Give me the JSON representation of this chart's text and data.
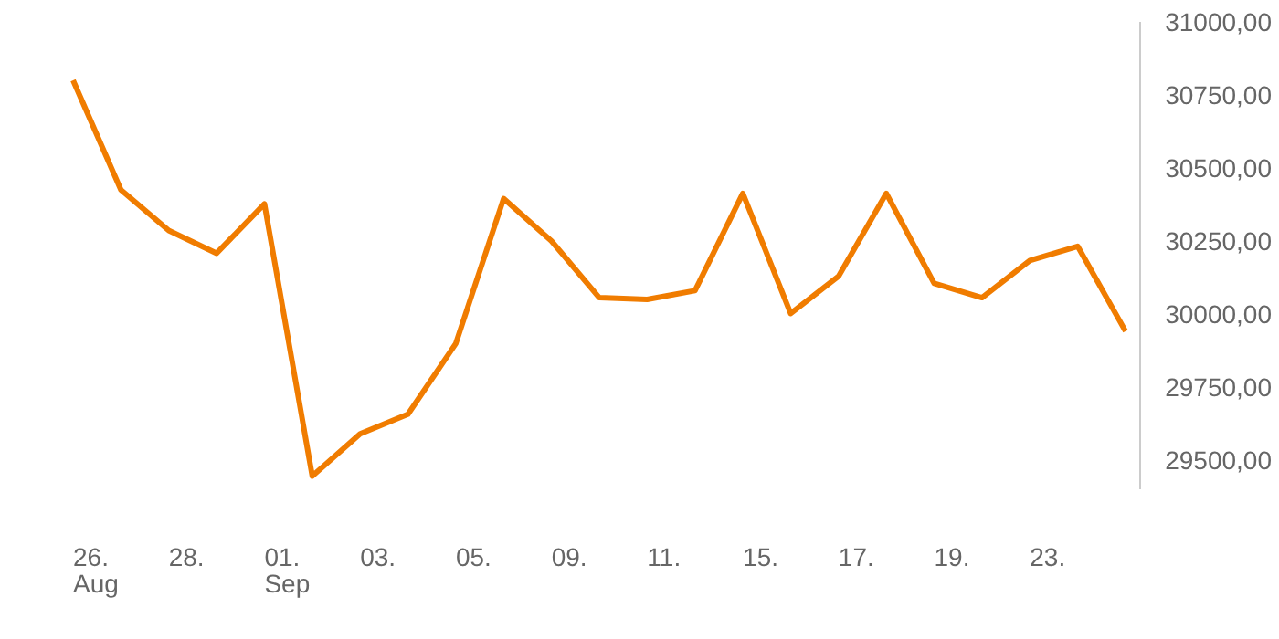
{
  "chart_data": {
    "type": "line",
    "categories": [
      "26.\nAug",
      null,
      "28.",
      null,
      "01.\nSep",
      null,
      "03.",
      null,
      "05.",
      null,
      "09.",
      null,
      "11.",
      null,
      "15.",
      null,
      "17.",
      null,
      "19.",
      null,
      "23.",
      null,
      null
    ],
    "series": [
      {
        "color": "#f07c00",
        "values": [
          30800,
          30425,
          30286,
          30208,
          30377,
          29445,
          29590,
          29657,
          29899,
          30395,
          30250,
          30056,
          30050,
          30080,
          30413,
          30002,
          30129,
          30413,
          30105,
          30056,
          30183,
          30232,
          29941
        ]
      }
    ],
    "ylim": [
      29400,
      31000
    ],
    "yticks": [
      {
        "value": 29500,
        "label": "29500,00"
      },
      {
        "value": 29750,
        "label": "29750,00"
      },
      {
        "value": 30000,
        "label": "30000,00"
      },
      {
        "value": 30250,
        "label": "30250,00"
      },
      {
        "value": 30500,
        "label": "30500,00"
      },
      {
        "value": 30750,
        "label": "30750,00"
      },
      {
        "value": 31000,
        "label": "31000,00"
      }
    ],
    "grid": false,
    "marker": "none",
    "line_style": "solid"
  }
}
